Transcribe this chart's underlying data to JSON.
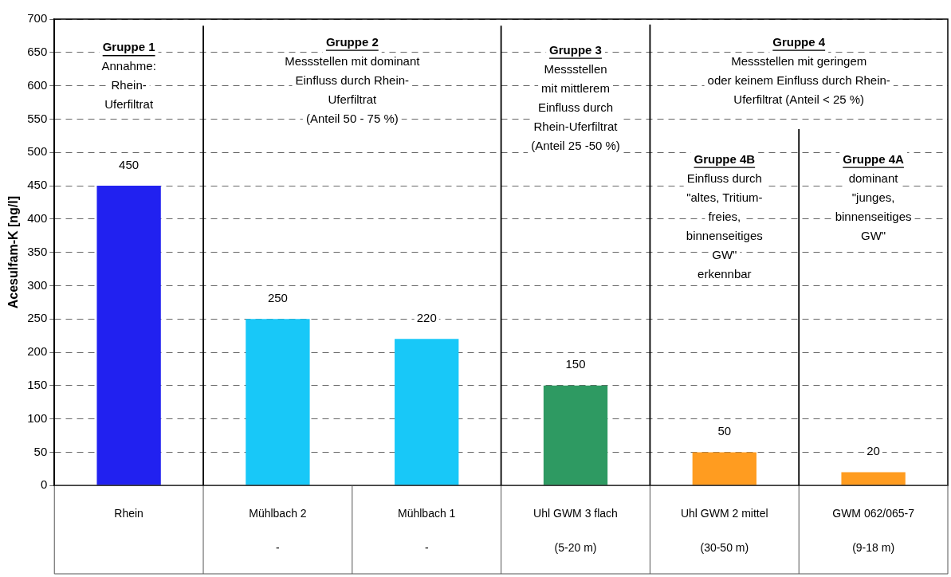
{
  "chart_data": {
    "type": "bar",
    "ylabel": "Acesulfam-K [ng/l]",
    "categories": [
      "Rhein\n",
      "Mühlbach 2\n-",
      "Mühlbach 1\n-",
      "Uhl GWM 3 flach\n(5-20 m)",
      "Uhl GWM 2 mittel\n(30-50 m)",
      "GWM 062/065-7\n(9-18 m)"
    ],
    "values": [
      450,
      250,
      220,
      150,
      50,
      20
    ],
    "colors": [
      "#2121f0",
      "#18c8f8",
      "#18c8f8",
      "#2e9a62",
      "#ff9c20",
      "#ff9c20"
    ],
    "ylim": [
      0,
      700
    ],
    "yticks": [
      0,
      50,
      100,
      150,
      200,
      250,
      300,
      350,
      400,
      450,
      500,
      550,
      600,
      650,
      700
    ],
    "grid": "y",
    "legend": false,
    "data_labels": true,
    "annotations": [
      "Gruppe 1\nAnnahme:\nRhein-\nUferfiltrat",
      "Gruppe 2\nMessstellen mit dominant\nEinfluss durch Rhein-\nUferfiltrat\n(Anteil 50 - 75 %)",
      "Gruppe 3\nMessstellen\nmit mittlerem\nEinfluss durch\nRhein-Uferfiltrat\n(Anteil 25 -50 %)",
      "Gruppe 4\nMessstellen mit geringem\noder keinem Einfluss durch Rhein-\nUferfiltrat (Anteil < 25 %)",
      "Gruppe 4B\nEinfluss durch\n\"altes, Tritium-\nfreies,\nbinnenseitiges\nGW\"\nerkennbar",
      "Gruppe 4A\ndominant\n\"junges,\nbinnenseitiges\nGW\""
    ]
  }
}
